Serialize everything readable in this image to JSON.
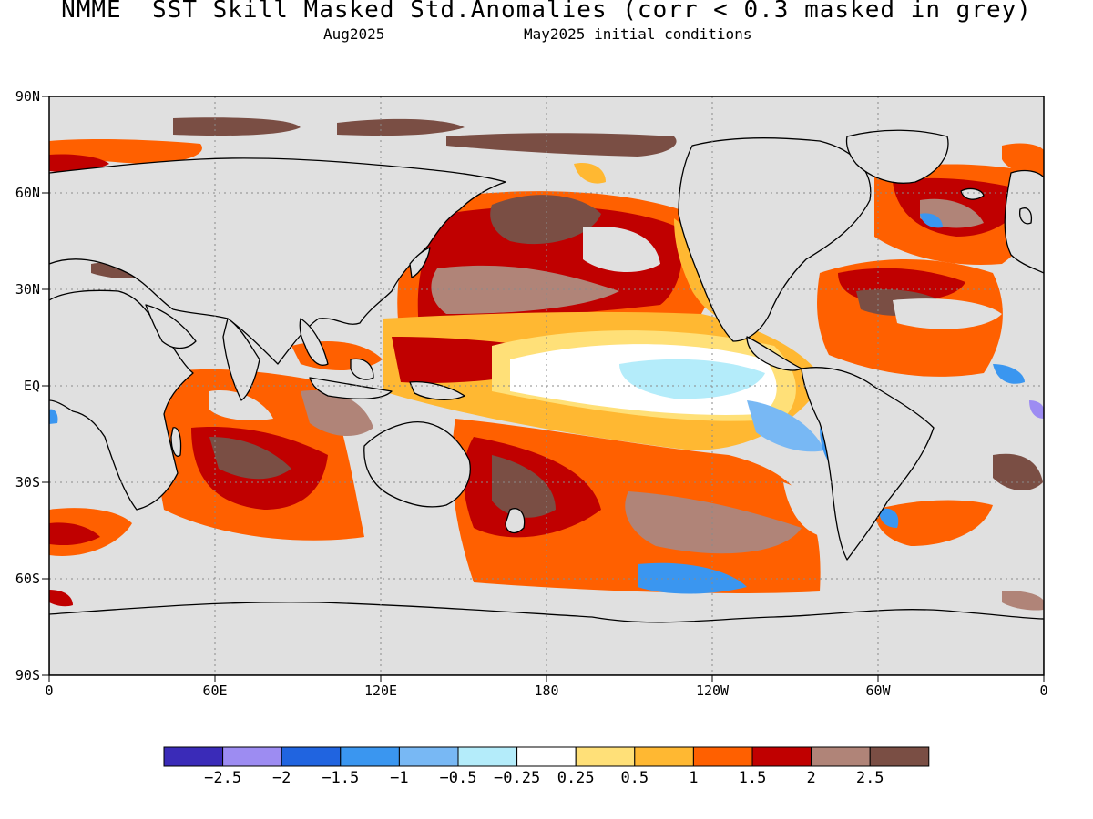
{
  "title": "NMME  SST Skill Masked Std.Anomalies (corr < 0.3 masked in grey)",
  "subtitle_left": "Aug2025",
  "subtitle_right": "May2025 initial conditions",
  "map": {
    "projection": "equirectangular",
    "lon_range": [
      0,
      360
    ],
    "lat_range": [
      -90,
      90
    ],
    "grid": true,
    "lat_labels": [
      "90N",
      "60N",
      "30N",
      "EQ",
      "30S",
      "60S",
      "90S"
    ],
    "lon_labels": [
      "0",
      "60E",
      "120E",
      "180",
      "120W",
      "60W",
      "0"
    ],
    "mask_color": "#e0e0e0",
    "land_outline_color": "#000000"
  },
  "colorbar": {
    "colors": [
      "#3a2bb8",
      "#9d8cf2",
      "#2064e0",
      "#3a96f0",
      "#78b8f4",
      "#b4ecfa",
      "#ffffff",
      "#ffe078",
      "#ffb832",
      "#ff6000",
      "#c00000",
      "#b08478",
      "#7a4e44"
    ],
    "labels": [
      "−2.5",
      "−2",
      "−1.5",
      "−1",
      "−0.5",
      "−0.25",
      "0.25",
      "0.5",
      "1",
      "1.5",
      "2",
      "2.5"
    ]
  }
}
